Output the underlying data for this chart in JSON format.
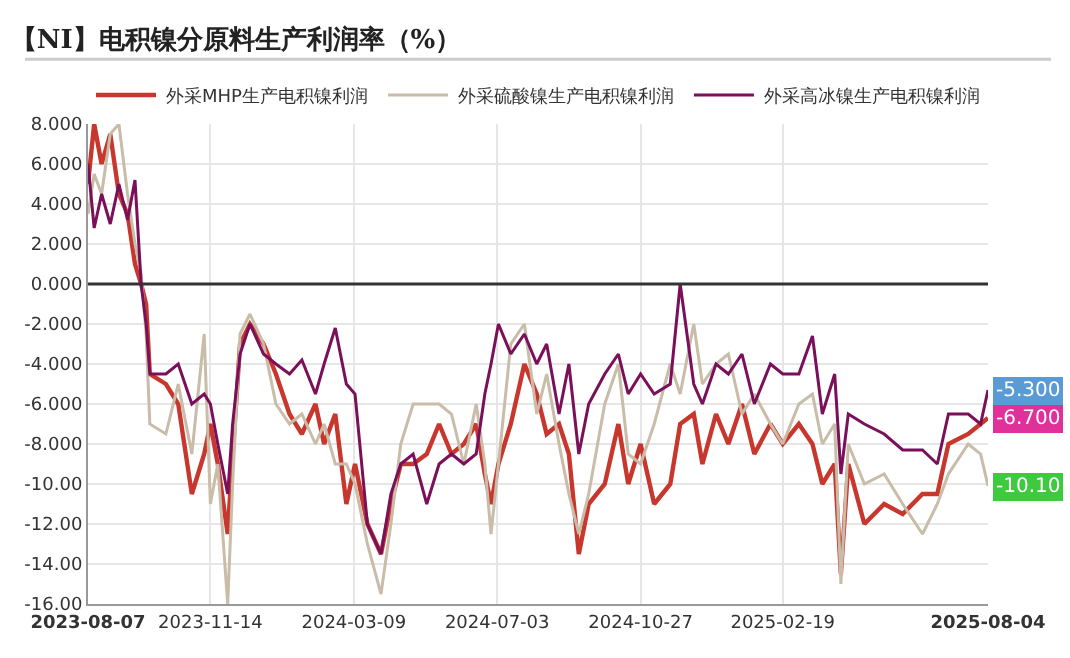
{
  "chart_data": {
    "type": "line",
    "title": "【NI】电积镍分原料生产利润率（%）",
    "x": [
      "2023-08-07",
      "2023-08-12",
      "2023-08-18",
      "2023-08-25",
      "2023-09-01",
      "2023-09-08",
      "2023-09-14",
      "2023-09-19",
      "2023-09-23",
      "2023-09-26",
      "2023-10-09",
      "2023-10-19",
      "2023-10-30",
      "2023-11-09",
      "2023-11-14",
      "2023-11-20",
      "2023-11-28",
      "2023-12-02",
      "2023-12-08",
      "2023-12-16",
      "2023-12-27",
      "2024-01-06",
      "2024-01-17",
      "2024-01-27",
      "2024-02-07",
      "2024-02-14",
      "2024-02-23",
      "2024-03-03",
      "2024-03-10",
      "2024-03-20",
      "2024-03-31",
      "2024-04-08",
      "2024-04-16",
      "2024-04-26",
      "2024-05-07",
      "2024-05-17",
      "2024-05-27",
      "2024-06-06",
      "2024-06-16",
      "2024-06-23",
      "2024-06-28",
      "2024-07-04",
      "2024-07-14",
      "2024-07-25",
      "2024-08-04",
      "2024-08-12",
      "2024-08-22",
      "2024-08-30",
      "2024-09-07",
      "2024-09-15",
      "2024-09-28",
      "2024-10-09",
      "2024-10-17",
      "2024-10-27",
      "2024-11-07",
      "2024-11-20",
      "2024-11-28",
      "2024-12-09",
      "2024-12-16",
      "2024-12-27",
      "2025-01-06",
      "2025-01-17",
      "2025-01-27",
      "2025-02-09",
      "2025-02-19",
      "2025-03-04",
      "2025-03-15",
      "2025-03-23",
      "2025-04-02",
      "2025-04-07",
      "2025-04-13",
      "2025-04-26",
      "2025-05-12",
      "2025-05-27",
      "2025-06-12",
      "2025-06-24",
      "2025-07-03",
      "2025-07-19",
      "2025-07-29",
      "2025-08-04"
    ],
    "series": [
      {
        "name": "外采MHP生产电积镍利润",
        "color": "#c8372d",
        "values": [
          5,
          8,
          6,
          7.5,
          4.5,
          3.5,
          1,
          0,
          -1,
          -4.5,
          -5,
          -6,
          -10.5,
          -8.5,
          -7,
          -9,
          -12.5,
          -8.5,
          -3,
          -2,
          -3,
          -4.5,
          -6.5,
          -7.5,
          -6,
          -8,
          -6.5,
          -11,
          -9,
          -12,
          -13.5,
          -11,
          -9,
          -9,
          -8.5,
          -7,
          -8.5,
          -8,
          -7,
          -9.5,
          -11,
          -9,
          -7,
          -4,
          -5.5,
          -7.5,
          -7,
          -8.5,
          -13.5,
          -11,
          -10,
          -7,
          -10,
          -8,
          -11,
          -10,
          -7,
          -6.5,
          -9,
          -6.5,
          -8,
          -6,
          -8.5,
          -7,
          -8,
          -7,
          -8,
          -10,
          -9,
          -14.5,
          -9,
          -12,
          -11,
          -11.5,
          -10.5,
          -10.5,
          -8,
          -7.5,
          -7,
          -6.7
        ]
      },
      {
        "name": "外采硫酸镍生产电积镍利润",
        "color": "#c9bca8",
        "values": [
          3.5,
          5.5,
          4.5,
          7.5,
          8,
          4.5,
          2,
          0.5,
          -2.5,
          -7,
          -7.5,
          -5,
          -8.5,
          -2.5,
          -11,
          -9,
          -16,
          -10,
          -2.5,
          -1.5,
          -3,
          -6,
          -7,
          -6.5,
          -8,
          -7,
          -9,
          -9,
          -10,
          -13,
          -15.5,
          -12,
          -8,
          -6,
          -6,
          -6,
          -6.5,
          -9,
          -6,
          -9,
          -12.5,
          -9,
          -3,
          -2,
          -6.5,
          -4.5,
          -8,
          -10.5,
          -12.5,
          -10.5,
          -6,
          -4,
          -8.5,
          -9,
          -7,
          -4,
          -5.5,
          -2,
          -5,
          -4,
          -3.5,
          -6.5,
          -5.5,
          -7,
          -8,
          -6,
          -5.5,
          -8,
          -7,
          -15,
          -8,
          -10,
          -9.5,
          -11,
          -12.5,
          -11,
          -9.5,
          -8,
          -8.5,
          -10.1
        ]
      },
      {
        "name": "外采高冰镍生产电积镍利润",
        "color": "#7a0f5a",
        "values": [
          6,
          2.8,
          4.5,
          3,
          5,
          3.2,
          5.2,
          0,
          -2,
          -4.5,
          -4.5,
          -4,
          -6,
          -5.5,
          -6,
          -8,
          -10.5,
          -7,
          -3.5,
          -2,
          -3.5,
          -4,
          -4.5,
          -3.8,
          -5.5,
          -4,
          -2.2,
          -5,
          -5.5,
          -12,
          -13.5,
          -10.5,
          -9,
          -8.5,
          -11,
          -9,
          -8.5,
          -9,
          -8.5,
          -5.5,
          -4,
          -2,
          -3.5,
          -2.5,
          -4,
          -3,
          -6.5,
          -4,
          -8.5,
          -6,
          -4.5,
          -3.5,
          -5.5,
          -4.5,
          -5.5,
          -5,
          0,
          -5,
          -6,
          -4,
          -4.5,
          -3.5,
          -6,
          -4,
          -4.5,
          -4.5,
          -2.6,
          -6.5,
          -4.5,
          -9.5,
          -6.5,
          -7,
          -7.5,
          -8.3,
          -8.3,
          -9,
          -6.5,
          -6.5,
          -7,
          -5.3
        ]
      }
    ],
    "xlim": [
      "2023-08-07",
      "2025-08-04"
    ],
    "xticks": [
      "2023-08-07",
      "2023-11-14",
      "2024-03-09",
      "2024-07-03",
      "2024-10-27",
      "2025-02-19",
      "2025-08-04"
    ],
    "ylim": [
      -16,
      8
    ],
    "yticks": [
      {
        "value": 8,
        "label": "8.000"
      },
      {
        "value": 6,
        "label": "6.000"
      },
      {
        "value": 4,
        "label": "4.000"
      },
      {
        "value": 2,
        "label": "2.000"
      },
      {
        "value": 0,
        "label": "0.000"
      },
      {
        "value": -2,
        "label": "-2.000"
      },
      {
        "value": -4,
        "label": "-4.000"
      },
      {
        "value": -6,
        "label": "-6.000"
      },
      {
        "value": -8,
        "label": "-8.000"
      },
      {
        "value": -10,
        "label": "-10.00"
      },
      {
        "value": -12,
        "label": "-12.00"
      },
      {
        "value": -14,
        "label": "-14.00"
      },
      {
        "value": -16,
        "label": "-16.00"
      }
    ],
    "ref_lines": [
      {
        "axis": "y",
        "value": 0,
        "color": "#333333"
      }
    ],
    "annotations": [
      {
        "text": "-5.300",
        "y": -5.3
      },
      {
        "text": "-6.700",
        "y": -6.7
      },
      {
        "text": "-10.10",
        "y": -10.1
      }
    ],
    "grid": true,
    "legend": "top",
    "line_style": "solid"
  }
}
